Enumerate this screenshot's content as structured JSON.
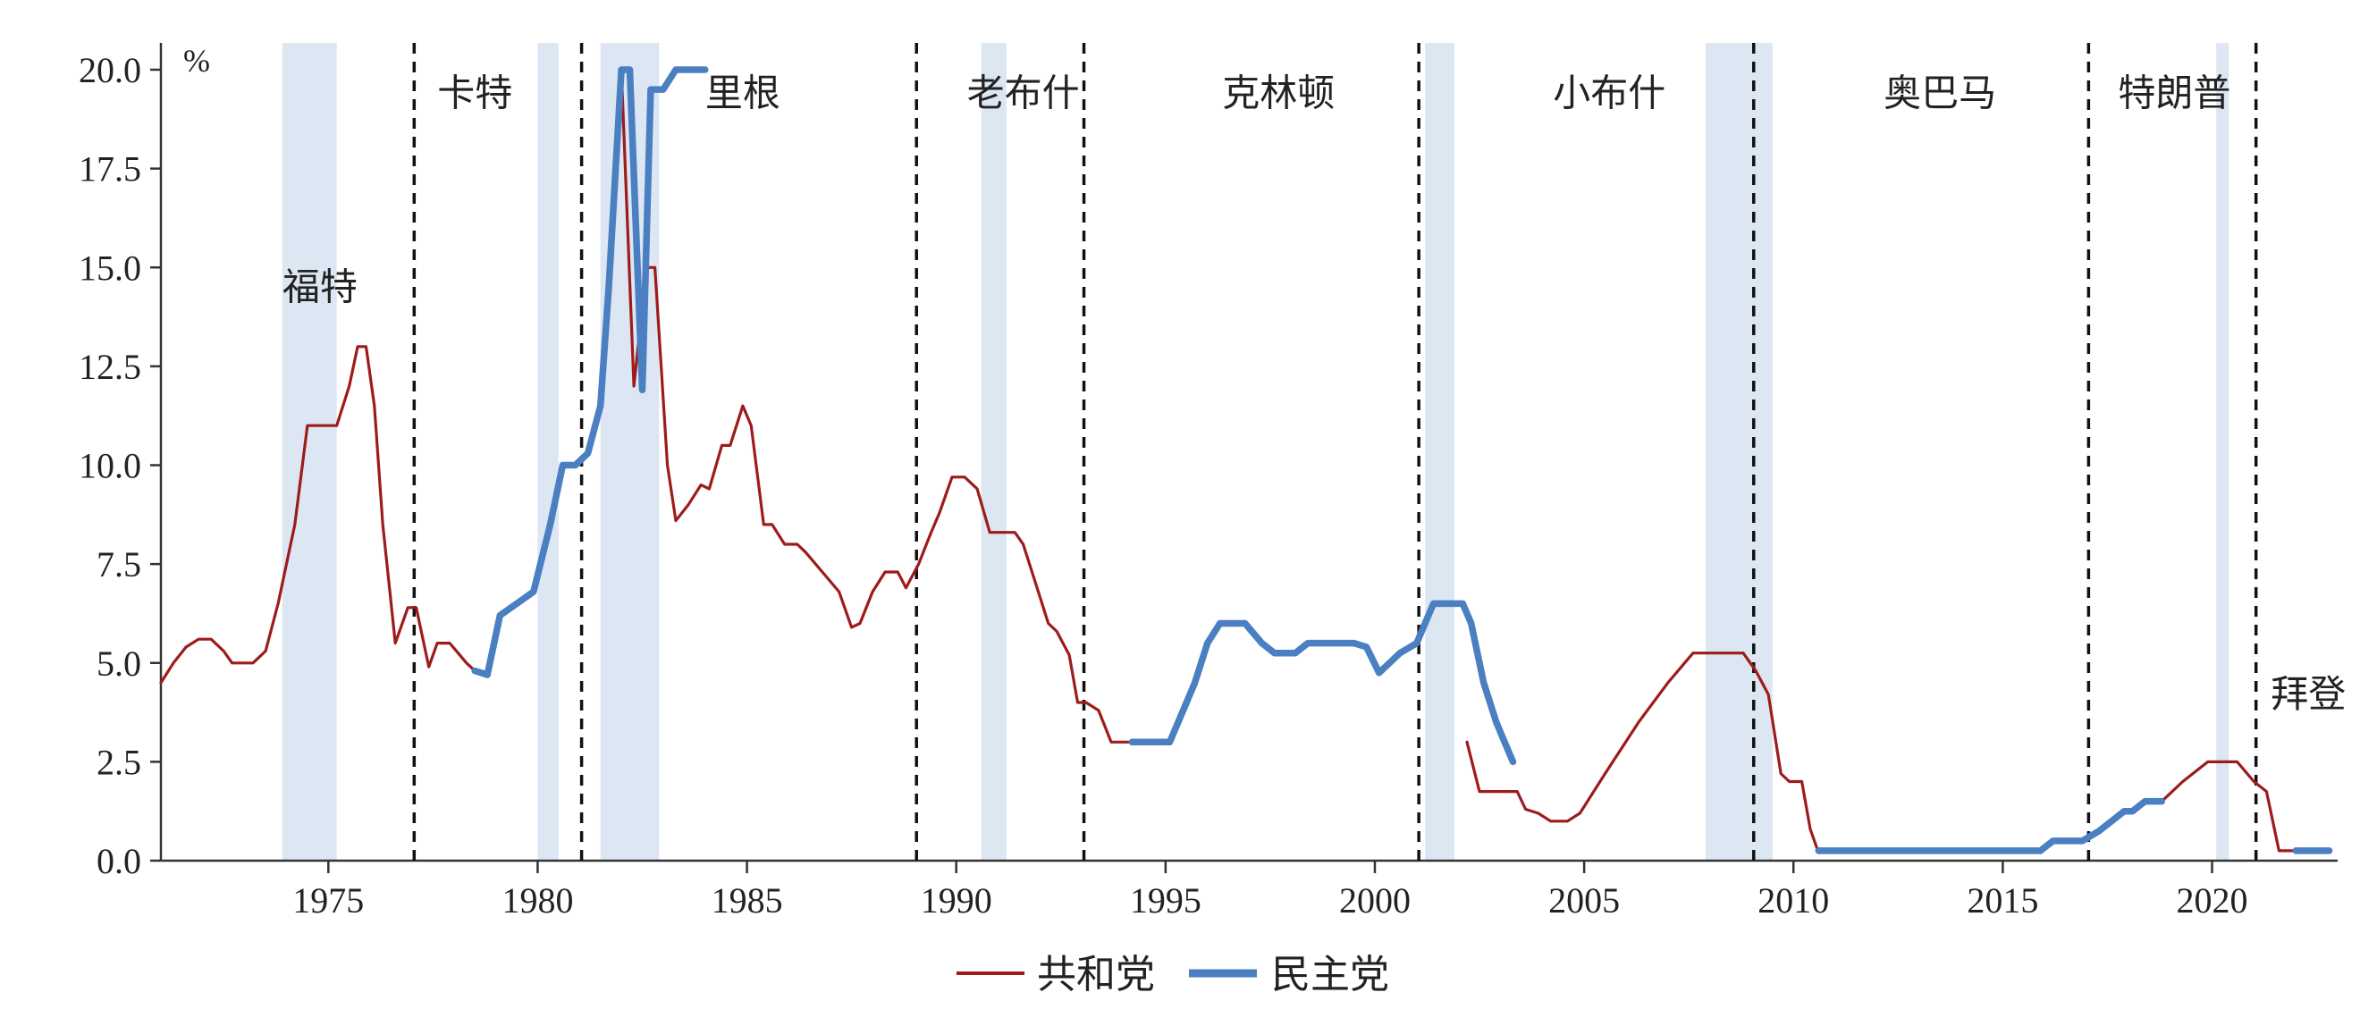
{
  "chart_data": {
    "type": "line",
    "title": "",
    "xlabel": "",
    "ylabel": "%",
    "xlim": [
      1971,
      2023
    ],
    "ylim": [
      0,
      20
    ],
    "x_ticks": [
      1975,
      1980,
      1985,
      1990,
      1995,
      2000,
      2005,
      2010,
      2015,
      2020
    ],
    "y_ticks": [
      "0.0",
      "2.5",
      "5.0",
      "7.5",
      "10.0",
      "12.5",
      "15.0",
      "17.5",
      "20.0"
    ],
    "legend_placement": "bottom-center",
    "grid": false,
    "colors": {
      "republican": "#9e1b1b",
      "democrat": "#4a7fc1",
      "recession": "#dde6f3"
    },
    "recessions": [
      [
        1973.9,
        1975.2
      ],
      [
        1980.0,
        1980.5
      ],
      [
        1981.5,
        1982.9
      ],
      [
        1990.6,
        1991.2
      ],
      [
        2001.2,
        2001.9
      ],
      [
        2007.9,
        2009.5
      ],
      [
        2020.1,
        2020.4
      ]
    ],
    "transitions": [
      1977.05,
      1981.05,
      1989.05,
      1993.05,
      2001.05,
      2009.05,
      2017.05,
      2021.05
    ],
    "presidents": [
      {
        "name": "福特",
        "x": 1974.8,
        "y": 14.5
      },
      {
        "name": "卡特",
        "x": 1978.5,
        "y": 19.4
      },
      {
        "name": "里根",
        "x": 1984.9,
        "y": 19.4
      },
      {
        "name": "老布什",
        "x": 1991.6,
        "y": 19.4
      },
      {
        "name": "克林顿",
        "x": 1997.7,
        "y": 19.4
      },
      {
        "name": "小布什",
        "x": 2005.6,
        "y": 19.4
      },
      {
        "name": "奥巴马",
        "x": 2013.5,
        "y": 19.4
      },
      {
        "name": "特朗普",
        "x": 2019.1,
        "y": 19.4
      },
      {
        "name": "拜登",
        "x": 2022.3,
        "y": 4.2
      }
    ],
    "series": [
      {
        "name": "共和党",
        "segments": [
          [
            [
              1971.0,
              4.5
            ],
            [
              1971.3,
              5.0
            ],
            [
              1971.6,
              5.4
            ],
            [
              1971.9,
              5.6
            ],
            [
              1972.2,
              5.6
            ],
            [
              1972.5,
              5.3
            ],
            [
              1972.7,
              5.0
            ],
            [
              1973.2,
              5.0
            ],
            [
              1973.5,
              5.3
            ],
            [
              1973.8,
              6.5
            ],
            [
              1974.2,
              8.5
            ],
            [
              1974.5,
              11.0
            ],
            [
              1975.2,
              11.0
            ],
            [
              1975.5,
              12.0
            ],
            [
              1975.7,
              13.0
            ],
            [
              1975.9,
              13.0
            ],
            [
              1976.1,
              11.5
            ],
            [
              1976.3,
              8.5
            ],
            [
              1976.6,
              5.5
            ],
            [
              1976.9,
              6.4
            ],
            [
              1977.1,
              6.4
            ],
            [
              1977.4,
              4.9
            ],
            [
              1977.6,
              5.5
            ],
            [
              1977.9,
              5.5
            ],
            [
              1978.3,
              5.0
            ],
            [
              1978.5,
              4.8
            ]
          ],
          [
            [
              1982.0,
              20.0
            ],
            [
              1982.3,
              12.0
            ],
            [
              1982.6,
              15.0
            ],
            [
              1982.8,
              15.0
            ],
            [
              1983.1,
              10.0
            ],
            [
              1983.3,
              8.6
            ],
            [
              1983.6,
              9.0
            ],
            [
              1983.9,
              9.5
            ],
            [
              1984.1,
              9.4
            ],
            [
              1984.4,
              10.5
            ],
            [
              1984.6,
              10.5
            ],
            [
              1984.9,
              11.5
            ],
            [
              1985.1,
              11.0
            ],
            [
              1985.4,
              8.5
            ],
            [
              1985.6,
              8.5
            ],
            [
              1985.9,
              8.0
            ],
            [
              1986.2,
              8.0
            ],
            [
              1986.4,
              7.8
            ],
            [
              1986.8,
              7.3
            ],
            [
              1987.2,
              6.8
            ],
            [
              1987.5,
              5.9
            ],
            [
              1987.7,
              6.0
            ],
            [
              1988.0,
              6.8
            ],
            [
              1988.3,
              7.3
            ],
            [
              1988.6,
              7.3
            ],
            [
              1988.8,
              6.9
            ],
            [
              1989.1,
              7.5
            ],
            [
              1989.4,
              8.3
            ],
            [
              1989.6,
              8.8
            ],
            [
              1989.9,
              9.7
            ],
            [
              1990.2,
              9.7
            ],
            [
              1990.5,
              9.4
            ],
            [
              1990.8,
              8.3
            ],
            [
              1991.1,
              8.3
            ],
            [
              1991.4,
              8.3
            ],
            [
              1991.6,
              8.0
            ],
            [
              1991.9,
              7.0
            ],
            [
              1992.2,
              6.0
            ],
            [
              1992.4,
              5.8
            ],
            [
              1992.7,
              5.2
            ],
            [
              1992.9,
              4.0
            ],
            [
              1993.1,
              4.0
            ],
            [
              1993.4,
              3.8
            ],
            [
              1993.7,
              3.0
            ],
            [
              1994.2,
              3.0
            ]
          ],
          [
            [
              2002.2,
              3.0
            ],
            [
              2002.5,
              1.75
            ],
            [
              2003.0,
              1.75
            ],
            [
              2003.4,
              1.75
            ],
            [
              2003.6,
              1.3
            ],
            [
              2003.9,
              1.2
            ],
            [
              2004.2,
              1.0
            ],
            [
              2004.6,
              1.0
            ],
            [
              2004.9,
              1.2
            ],
            [
              2005.5,
              2.2
            ],
            [
              2006.3,
              3.5
            ],
            [
              2007.0,
              4.5
            ],
            [
              2007.6,
              5.25
            ],
            [
              2008.1,
              5.25
            ],
            [
              2008.8,
              5.25
            ],
            [
              2009.1,
              4.8
            ],
            [
              2009.4,
              4.2
            ],
            [
              2009.7,
              2.2
            ],
            [
              2009.9,
              2.0
            ],
            [
              2010.2,
              2.0
            ],
            [
              2010.4,
              0.8
            ],
            [
              2010.6,
              0.2
            ]
          ],
          [
            [
              2018.8,
              1.5
            ],
            [
              2019.3,
              2.0
            ],
            [
              2019.9,
              2.5
            ],
            [
              2020.6,
              2.5
            ],
            [
              2021.0,
              2.0
            ],
            [
              2021.3,
              1.75
            ],
            [
              2021.6,
              0.25
            ],
            [
              2022.4,
              0.25
            ]
          ]
        ]
      },
      {
        "name": "民主党",
        "segments": [
          [
            [
              1978.5,
              4.8
            ],
            [
              1978.8,
              4.7
            ],
            [
              1979.1,
              6.2
            ],
            [
              1979.5,
              6.5
            ],
            [
              1979.9,
              6.8
            ],
            [
              1980.3,
              8.5
            ],
            [
              1980.6,
              10.0
            ],
            [
              1980.9,
              10.0
            ],
            [
              1981.2,
              10.3
            ],
            [
              1981.5,
              11.5
            ],
            [
              1981.7,
              14.5
            ],
            [
              1982.0,
              20.0
            ],
            [
              1982.2,
              20.0
            ],
            [
              1982.5,
              11.9
            ],
            [
              1982.7,
              19.5
            ],
            [
              1983.0,
              19.5
            ],
            [
              1983.3,
              20.0
            ],
            [
              1983.8,
              20.0
            ],
            [
              1984.0,
              20.0
            ]
          ],
          [
            [
              1994.2,
              3.0
            ],
            [
              1995.1,
              3.0
            ],
            [
              1995.4,
              3.75
            ],
            [
              1995.7,
              4.5
            ],
            [
              1996.0,
              5.5
            ],
            [
              1996.3,
              6.0
            ],
            [
              1996.9,
              6.0
            ],
            [
              1997.3,
              5.5
            ],
            [
              1997.6,
              5.25
            ],
            [
              1998.1,
              5.25
            ],
            [
              1998.4,
              5.5
            ],
            [
              1999.5,
              5.5
            ],
            [
              1999.8,
              5.4
            ],
            [
              2000.1,
              4.75
            ],
            [
              2000.6,
              5.25
            ],
            [
              2001.0,
              5.5
            ],
            [
              2001.4,
              6.5
            ],
            [
              2002.1,
              6.5
            ],
            [
              2002.3,
              6.0
            ],
            [
              2002.6,
              4.5
            ],
            [
              2002.9,
              3.5
            ],
            [
              2003.1,
              3.0
            ],
            [
              2003.3,
              2.5
            ]
          ],
          [
            [
              2010.6,
              0.25
            ],
            [
              2015.9,
              0.25
            ],
            [
              2016.2,
              0.5
            ],
            [
              2016.6,
              0.5
            ],
            [
              2016.9,
              0.5
            ],
            [
              2017.3,
              0.75
            ],
            [
              2017.6,
              1.0
            ],
            [
              2017.9,
              1.25
            ],
            [
              2018.1,
              1.25
            ],
            [
              2018.4,
              1.5
            ],
            [
              2018.8,
              1.5
            ]
          ],
          [
            [
              2022.0,
              0.25
            ],
            [
              2022.8,
              0.25
            ]
          ]
        ]
      }
    ]
  }
}
